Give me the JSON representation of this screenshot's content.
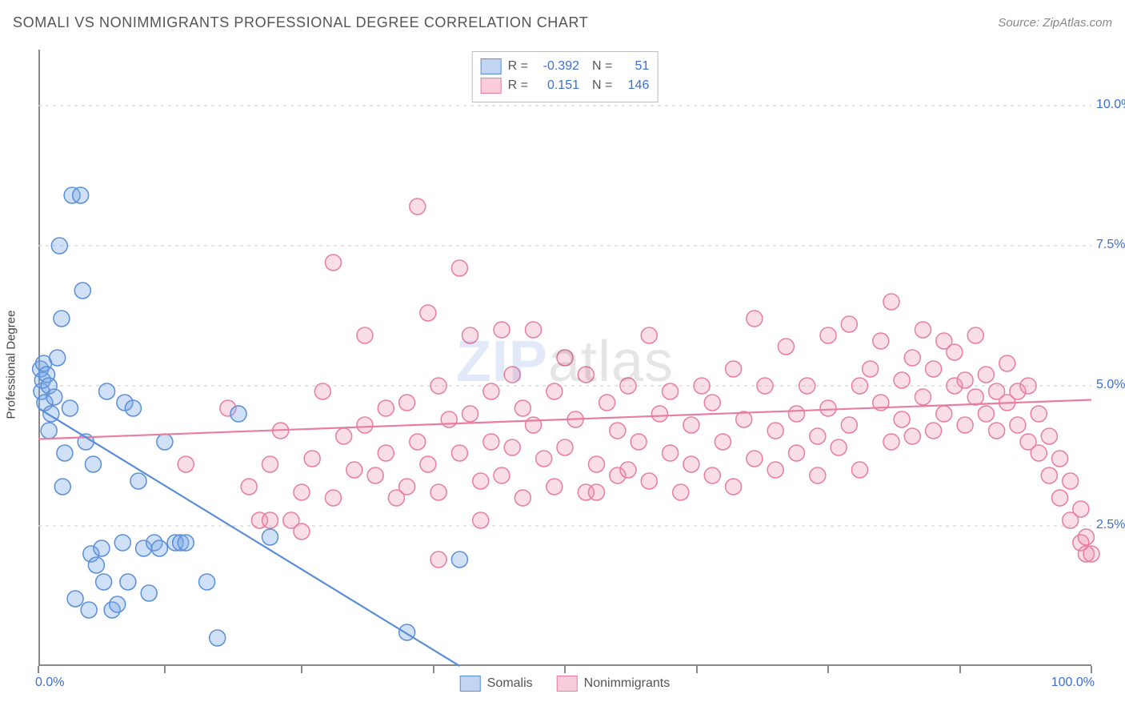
{
  "title": "SOMALI VS NONIMMIGRANTS PROFESSIONAL DEGREE CORRELATION CHART",
  "source_prefix": "Source: ",
  "source_name": "ZipAtlas.com",
  "ylabel": "Professional Degree",
  "watermark_bold": "ZIP",
  "watermark_rest": "atlas",
  "xlim": [
    0,
    100
  ],
  "ylim": [
    0,
    11
  ],
  "y_ticks": [
    {
      "v": 2.5,
      "label": "2.5%"
    },
    {
      "v": 5.0,
      "label": "5.0%"
    },
    {
      "v": 7.5,
      "label": "7.5%"
    },
    {
      "v": 10.0,
      "label": "10.0%"
    }
  ],
  "x_tick_positions": [
    0,
    12,
    25,
    37.5,
    50,
    62.5,
    75,
    87.5,
    100
  ],
  "x_left_label": "0.0%",
  "x_right_label": "100.0%",
  "series": {
    "somalis": {
      "label": "Somalis",
      "color_fill": "rgba(120,165,230,0.35)",
      "color_stroke": "#5a8fd8",
      "swatch_fill": "#c1d5f2",
      "swatch_border": "#5a8fd8",
      "R": "-0.392",
      "N": "51",
      "trend": {
        "x1": 0,
        "y1": 4.6,
        "x2": 40,
        "y2": 0
      },
      "points": [
        [
          0.2,
          5.3
        ],
        [
          0.3,
          4.9
        ],
        [
          0.4,
          5.1
        ],
        [
          0.5,
          5.4
        ],
        [
          0.6,
          4.7
        ],
        [
          0.8,
          5.2
        ],
        [
          1.0,
          5.0
        ],
        [
          1.2,
          4.5
        ],
        [
          1.0,
          4.2
        ],
        [
          1.5,
          4.8
        ],
        [
          1.8,
          5.5
        ],
        [
          2.0,
          7.5
        ],
        [
          2.2,
          6.2
        ],
        [
          2.5,
          3.8
        ],
        [
          2.3,
          3.2
        ],
        [
          3.0,
          4.6
        ],
        [
          3.2,
          8.4
        ],
        [
          3.5,
          1.2
        ],
        [
          4.0,
          8.4
        ],
        [
          4.2,
          6.7
        ],
        [
          4.5,
          4.0
        ],
        [
          4.8,
          1.0
        ],
        [
          5.0,
          2.0
        ],
        [
          5.2,
          3.6
        ],
        [
          5.5,
          1.8
        ],
        [
          6.0,
          2.1
        ],
        [
          6.2,
          1.5
        ],
        [
          6.5,
          4.9
        ],
        [
          7.0,
          1.0
        ],
        [
          7.5,
          1.1
        ],
        [
          8.0,
          2.2
        ],
        [
          8.2,
          4.7
        ],
        [
          8.5,
          1.5
        ],
        [
          9.0,
          4.6
        ],
        [
          9.5,
          3.3
        ],
        [
          10,
          2.1
        ],
        [
          10.5,
          1.3
        ],
        [
          11,
          2.2
        ],
        [
          11.5,
          2.1
        ],
        [
          12,
          4.0
        ],
        [
          13,
          2.2
        ],
        [
          13.5,
          2.2
        ],
        [
          14,
          2.2
        ],
        [
          16,
          1.5
        ],
        [
          17,
          0.5
        ],
        [
          19,
          4.5
        ],
        [
          22,
          2.3
        ],
        [
          35,
          0.6
        ],
        [
          40,
          1.9
        ]
      ]
    },
    "nonimmigrants": {
      "label": "Nonimmigrants",
      "color_fill": "rgba(240,145,175,0.30)",
      "color_stroke": "#e87da0",
      "swatch_fill": "#f8cdd9",
      "swatch_border": "#e87da0",
      "R": "0.151",
      "N": "146",
      "trend": {
        "x1": 0,
        "y1": 4.05,
        "x2": 100,
        "y2": 4.75
      },
      "points": [
        [
          14,
          3.6
        ],
        [
          18,
          4.6
        ],
        [
          20,
          3.2
        ],
        [
          21,
          2.6
        ],
        [
          22,
          3.6
        ],
        [
          22,
          2.6
        ],
        [
          23,
          4.2
        ],
        [
          24,
          2.6
        ],
        [
          25,
          3.1
        ],
        [
          25,
          2.4
        ],
        [
          26,
          3.7
        ],
        [
          27,
          4.9
        ],
        [
          28,
          7.2
        ],
        [
          28,
          3.0
        ],
        [
          29,
          4.1
        ],
        [
          30,
          3.5
        ],
        [
          31,
          5.9
        ],
        [
          31,
          4.3
        ],
        [
          32,
          3.4
        ],
        [
          33,
          4.6
        ],
        [
          33,
          3.8
        ],
        [
          34,
          3.0
        ],
        [
          35,
          4.7
        ],
        [
          35,
          3.2
        ],
        [
          36,
          8.2
        ],
        [
          36,
          4.0
        ],
        [
          37,
          6.3
        ],
        [
          37,
          3.6
        ],
        [
          38,
          5.0
        ],
        [
          38,
          3.1
        ],
        [
          38,
          1.9
        ],
        [
          39,
          4.4
        ],
        [
          40,
          7.1
        ],
        [
          40,
          3.8
        ],
        [
          41,
          5.9
        ],
        [
          41,
          4.5
        ],
        [
          42,
          3.3
        ],
        [
          42,
          2.6
        ],
        [
          43,
          4.9
        ],
        [
          43,
          4.0
        ],
        [
          44,
          6.0
        ],
        [
          44,
          3.4
        ],
        [
          45,
          5.2
        ],
        [
          45,
          3.9
        ],
        [
          46,
          4.6
        ],
        [
          46,
          3.0
        ],
        [
          47,
          6.0
        ],
        [
          47,
          4.3
        ],
        [
          48,
          3.7
        ],
        [
          49,
          4.9
        ],
        [
          49,
          3.2
        ],
        [
          50,
          5.5
        ],
        [
          50,
          3.9
        ],
        [
          51,
          4.4
        ],
        [
          52,
          3.1
        ],
        [
          52,
          5.2
        ],
        [
          53,
          3.6
        ],
        [
          53,
          3.1
        ],
        [
          54,
          4.7
        ],
        [
          55,
          3.4
        ],
        [
          55,
          4.2
        ],
        [
          56,
          5.0
        ],
        [
          56,
          3.5
        ],
        [
          57,
          4.0
        ],
        [
          58,
          5.9
        ],
        [
          58,
          3.3
        ],
        [
          59,
          4.5
        ],
        [
          60,
          3.8
        ],
        [
          60,
          4.9
        ],
        [
          61,
          3.1
        ],
        [
          62,
          4.3
        ],
        [
          62,
          3.6
        ],
        [
          63,
          5.0
        ],
        [
          64,
          3.4
        ],
        [
          64,
          4.7
        ],
        [
          65,
          4.0
        ],
        [
          66,
          3.2
        ],
        [
          66,
          5.3
        ],
        [
          67,
          4.4
        ],
        [
          68,
          3.7
        ],
        [
          68,
          6.2
        ],
        [
          69,
          5.0
        ],
        [
          70,
          4.2
        ],
        [
          70,
          3.5
        ],
        [
          71,
          5.7
        ],
        [
          72,
          4.5
        ],
        [
          72,
          3.8
        ],
        [
          73,
          5.0
        ],
        [
          74,
          4.1
        ],
        [
          74,
          3.4
        ],
        [
          75,
          5.9
        ],
        [
          75,
          4.6
        ],
        [
          76,
          3.9
        ],
        [
          77,
          6.1
        ],
        [
          77,
          4.3
        ],
        [
          78,
          5.0
        ],
        [
          78,
          3.5
        ],
        [
          79,
          5.3
        ],
        [
          80,
          4.7
        ],
        [
          80,
          5.8
        ],
        [
          81,
          4.0
        ],
        [
          81,
          6.5
        ],
        [
          82,
          4.4
        ],
        [
          82,
          5.1
        ],
        [
          83,
          5.5
        ],
        [
          83,
          4.1
        ],
        [
          84,
          6.0
        ],
        [
          84,
          4.8
        ],
        [
          85,
          5.3
        ],
        [
          85,
          4.2
        ],
        [
          86,
          5.8
        ],
        [
          86,
          4.5
        ],
        [
          87,
          5.0
        ],
        [
          87,
          5.6
        ],
        [
          88,
          4.3
        ],
        [
          88,
          5.1
        ],
        [
          89,
          4.8
        ],
        [
          89,
          5.9
        ],
        [
          90,
          4.5
        ],
        [
          90,
          5.2
        ],
        [
          91,
          4.9
        ],
        [
          91,
          4.2
        ],
        [
          92,
          5.4
        ],
        [
          92,
          4.7
        ],
        [
          93,
          4.9
        ],
        [
          93,
          4.3
        ],
        [
          94,
          5.0
        ],
        [
          94,
          4.0
        ],
        [
          95,
          4.5
        ],
        [
          95,
          3.8
        ],
        [
          96,
          4.1
        ],
        [
          96,
          3.4
        ],
        [
          97,
          3.7
        ],
        [
          97,
          3.0
        ],
        [
          98,
          3.3
        ],
        [
          98,
          2.6
        ],
        [
          99,
          2.8
        ],
        [
          99,
          2.2
        ],
        [
          99.5,
          2.3
        ],
        [
          99.5,
          2.0
        ],
        [
          100,
          2.0
        ]
      ]
    }
  },
  "marker_radius": 10,
  "marker_stroke_width": 1.5,
  "grid_color": "#d5d5d5",
  "axis_label_color": "#3b6fd6",
  "trend_stroke_width": 2.2
}
